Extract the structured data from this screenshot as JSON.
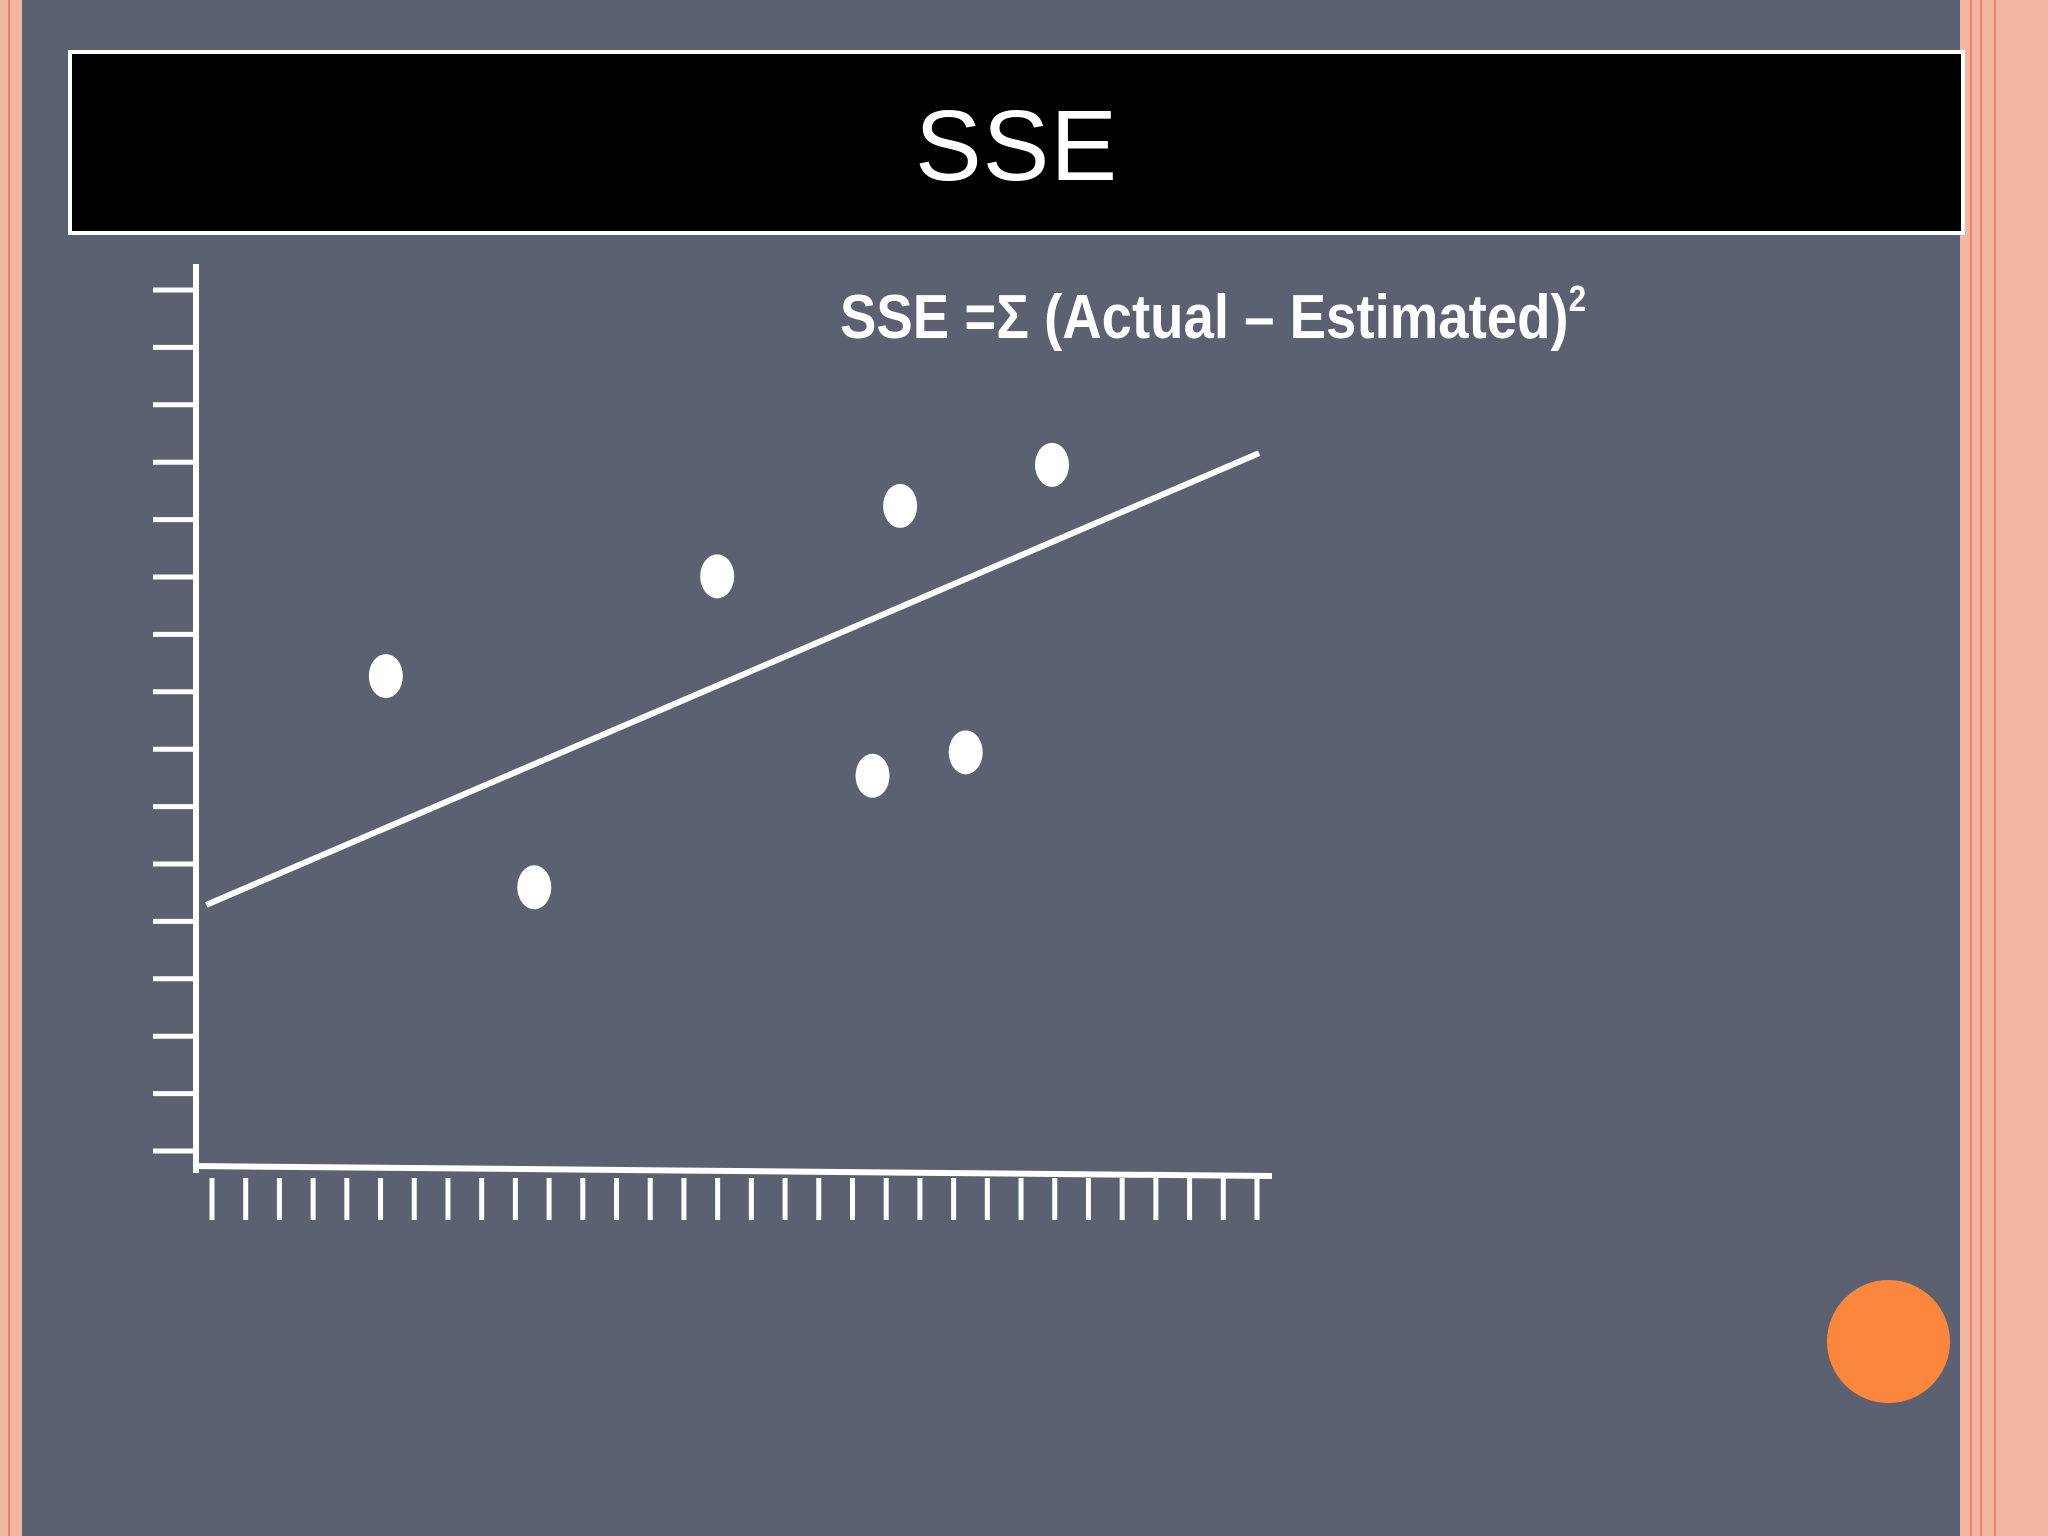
{
  "slide": {
    "title": "SSE",
    "formula": {
      "text": "SSE =Σ (Actual – Estimated)",
      "superscript": "2"
    }
  },
  "colors": {
    "background": "#5b6170",
    "title_bar": "#000000",
    "foreground": "#ffffff",
    "border_salmon": "#f2b7a2",
    "border_orange": "#e8825b",
    "accent_dot": "#fb873d"
  },
  "chart_data": {
    "type": "scatter",
    "title": "",
    "xlabel": "",
    "ylabel": "",
    "xlim": [
      0,
      31
    ],
    "ylim": [
      0,
      15
    ],
    "x_tick_count": 32,
    "y_tick_count": 16,
    "grid": false,
    "legend": "none",
    "points": [
      {
        "x": 5.5,
        "y": 8.3
      },
      {
        "x": 9.8,
        "y": 4.7
      },
      {
        "x": 15.1,
        "y": 10.0
      },
      {
        "x": 19.6,
        "y": 6.6
      },
      {
        "x": 20.4,
        "y": 11.2
      },
      {
        "x": 22.3,
        "y": 7.0
      },
      {
        "x": 24.8,
        "y": 11.9
      }
    ],
    "trend_line": {
      "x": [
        0.3,
        30.8
      ],
      "y": [
        4.4,
        12.1
      ]
    }
  }
}
